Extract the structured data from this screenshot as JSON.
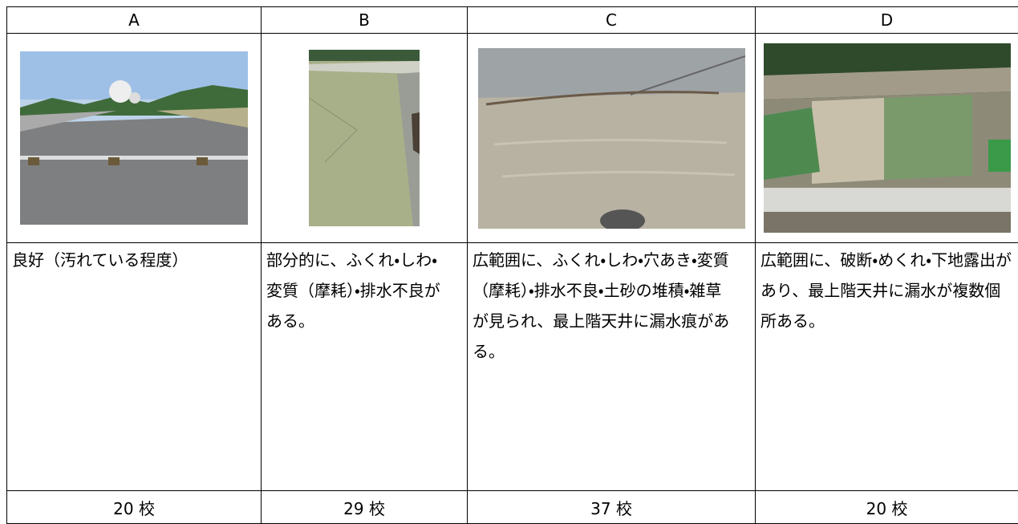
{
  "table": {
    "header": [
      "A",
      "B",
      "C",
      "D"
    ],
    "descriptions": [
      "良好（汚れている程度）",
      "部分的に、ふくれ・しわ・変質（摩耗）・排水不良がある。",
      "広範囲に、ふくれ・しわ・穴あき・変質（摩耗）・排水不良・土砂の堆積・雑草が見られ、最上階天井に漏水痕がある。",
      "広範囲に、破断・めくれ・下地露出があり、最上階天井に漏水が複数個所ある。"
    ],
    "counts": [
      "20 校",
      "29 校",
      "37 校",
      "20 校"
    ]
  }
}
